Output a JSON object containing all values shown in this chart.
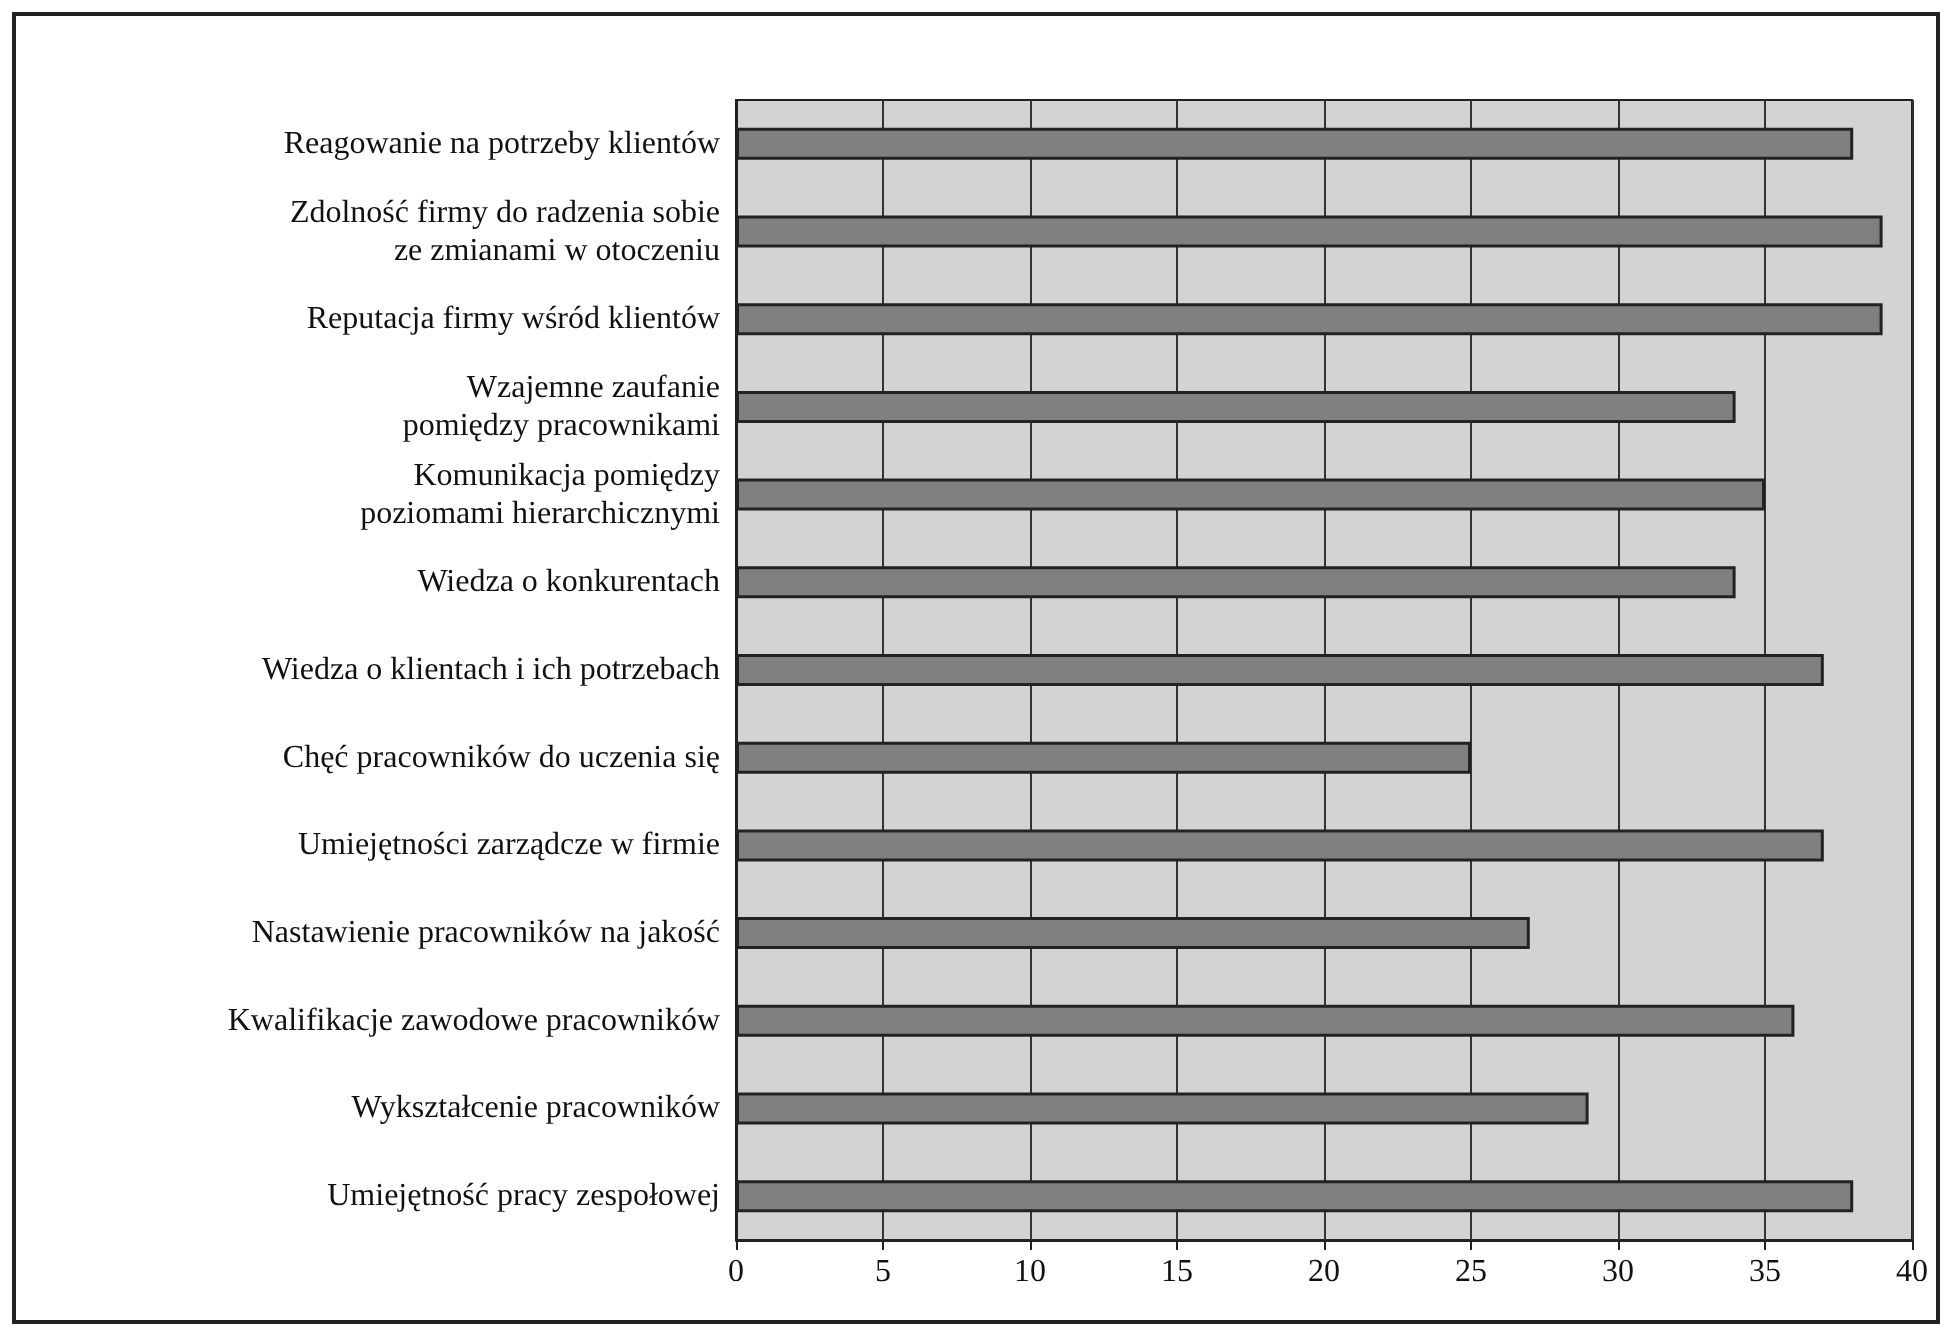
{
  "chart_data": {
    "type": "bar",
    "orientation": "horizontal",
    "categories": [
      "Reagowanie na potrzeby klientów",
      "Zdolność firmy do radzenia sobie\nze zmianami w otoczeniu",
      "Reputacja firmy wśród klientów",
      "Wzajemne zaufanie\npomiędzy pracownikami",
      "Komunikacja pomiędzy\npoziomami hierarchicznymi",
      "Wiedza o konkurentach",
      "Wiedza o klientach i ich potrzebach",
      "Chęć pracowników do uczenia się",
      "Umiejętności zarządcze w firmie",
      "Nastawienie pracowników na jakość",
      "Kwalifikacje zawodowe pracowników",
      "Wykształcenie pracowników",
      "Umiejętność pracy zespołowej"
    ],
    "values": [
      38,
      39,
      39,
      34,
      35,
      34,
      37,
      25,
      37,
      27,
      36,
      29,
      38
    ],
    "color": "#808080",
    "xlim": [
      0,
      40
    ],
    "xticks": [
      0,
      5,
      10,
      15,
      20,
      25,
      30,
      35,
      40
    ],
    "grid": "x"
  }
}
